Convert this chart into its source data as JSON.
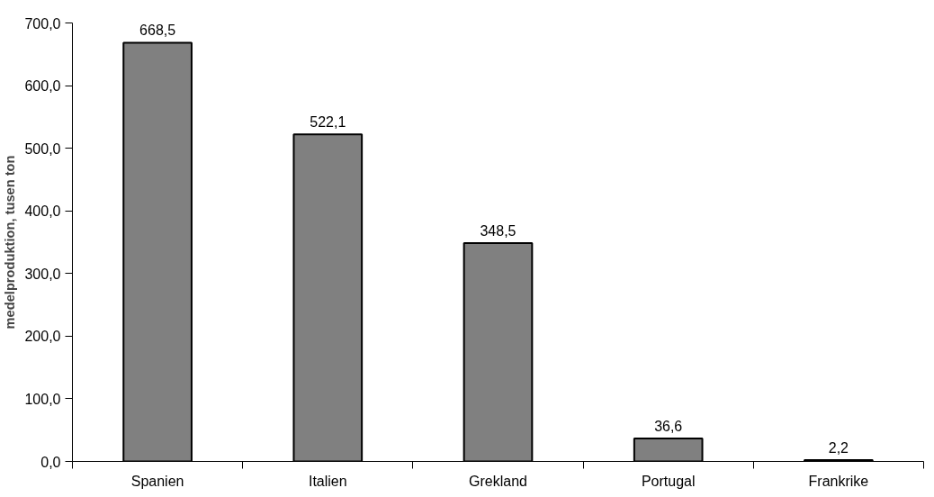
{
  "chart_data": {
    "type": "bar",
    "ylabel": "medelproduktion, tusen ton",
    "categories": [
      "Spanien",
      "Italien",
      "Grekland",
      "Portugal",
      "Frankrike"
    ],
    "values": [
      668.5,
      522.1,
      348.5,
      36.6,
      2.2
    ],
    "value_labels": [
      "668,5",
      "522,1",
      "348,5",
      "36,6",
      "2,2"
    ],
    "color": "#808080",
    "ylim": [
      0,
      700
    ],
    "yticks": [
      {
        "value": 0,
        "label": "0,0"
      },
      {
        "value": 100,
        "label": "100,0"
      },
      {
        "value": 200,
        "label": "200,0"
      },
      {
        "value": 300,
        "label": "300,0"
      },
      {
        "value": 400,
        "label": "400,0"
      },
      {
        "value": 500,
        "label": "500,0"
      },
      {
        "value": 600,
        "label": "600,0"
      },
      {
        "value": 700,
        "label": "700,0"
      }
    ],
    "grid": false
  }
}
